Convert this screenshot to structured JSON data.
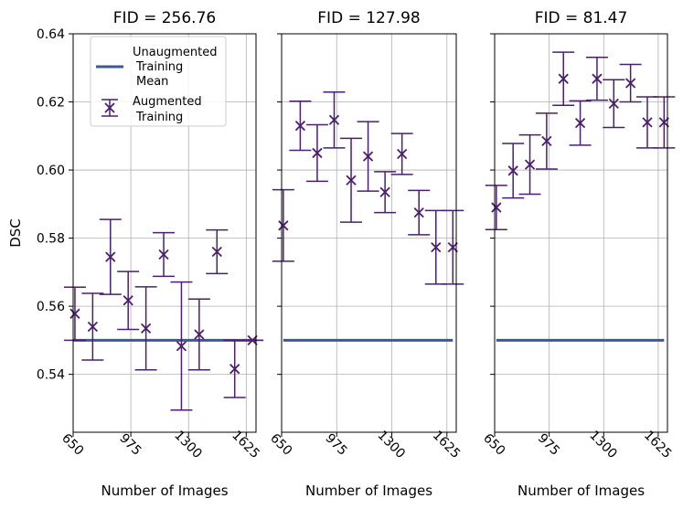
{
  "chart_data": {
    "type": "errorbar",
    "ylabel": "DSC",
    "xlabel": "Number of Images",
    "ylim": [
      0.523,
      0.64
    ],
    "xlim": [
      650,
      1680
    ],
    "x_ticks": [
      650,
      975,
      1300,
      1625
    ],
    "x_tick_labels": [
      "650",
      "975",
      "1300",
      "1625"
    ],
    "y_ticks": [
      0.54,
      0.56,
      0.58,
      0.6,
      0.62,
      0.64
    ],
    "y_tick_labels": [
      "0.54",
      "0.56",
      "0.58",
      "0.60",
      "0.62",
      "0.64"
    ],
    "grid": true,
    "colors": {
      "unaugmented": "#3b5998",
      "augmented": "#4a1f6e"
    },
    "legend": {
      "location": "top-left of first panel",
      "unaugmented_lines": [
        "Unaugmented",
        "Training",
        "Mean"
      ],
      "augmented_lines": [
        "Augmented",
        "Training"
      ]
    },
    "panels": [
      {
        "title": "FID = 256.76",
        "unaugmented_mean": {
          "value": 0.55,
          "x_range": [
            650,
            1680
          ]
        },
        "augmented": {
          "x": [
            660,
            760,
            860,
            960,
            1060,
            1160,
            1260,
            1360,
            1460,
            1560,
            1660
          ],
          "y": [
            0.5578,
            0.554,
            0.5745,
            0.5617,
            0.5535,
            0.5752,
            0.5483,
            0.5517,
            0.576,
            0.5416,
            0.55
          ],
          "err": [
            0.0078,
            0.0098,
            0.011,
            0.0085,
            0.0122,
            0.0064,
            0.0188,
            0.0104,
            0.0064,
            0.0084,
            0.0
          ]
        }
      },
      {
        "title": "FID = 127.98",
        "unaugmented_mean": {
          "value": 0.55,
          "x_range": [
            660,
            1660
          ]
        },
        "augmented": {
          "x": [
            660,
            760,
            860,
            960,
            1060,
            1160,
            1260,
            1360,
            1460,
            1560,
            1660
          ],
          "y": [
            0.5837,
            0.613,
            0.605,
            0.6147,
            0.597,
            0.604,
            0.5935,
            0.6047,
            0.5875,
            0.5773,
            0.5773
          ],
          "err": [
            0.0105,
            0.0072,
            0.0083,
            0.0082,
            0.0123,
            0.0102,
            0.006,
            0.006,
            0.0065,
            0.0108,
            0.0108
          ]
        }
      },
      {
        "title": "FID = 81.47",
        "unaugmented_mean": {
          "value": 0.55,
          "x_range": [
            660,
            1660
          ]
        },
        "augmented": {
          "x": [
            660,
            760,
            860,
            960,
            1060,
            1160,
            1260,
            1360,
            1460,
            1560,
            1660
          ],
          "y": [
            0.589,
            0.5998,
            0.6016,
            0.6085,
            0.6268,
            0.6138,
            0.6268,
            0.6195,
            0.6255,
            0.614,
            0.614
          ],
          "err": [
            0.0065,
            0.008,
            0.0087,
            0.0082,
            0.0078,
            0.0065,
            0.0063,
            0.007,
            0.0055,
            0.0075,
            0.0075
          ]
        }
      }
    ]
  }
}
